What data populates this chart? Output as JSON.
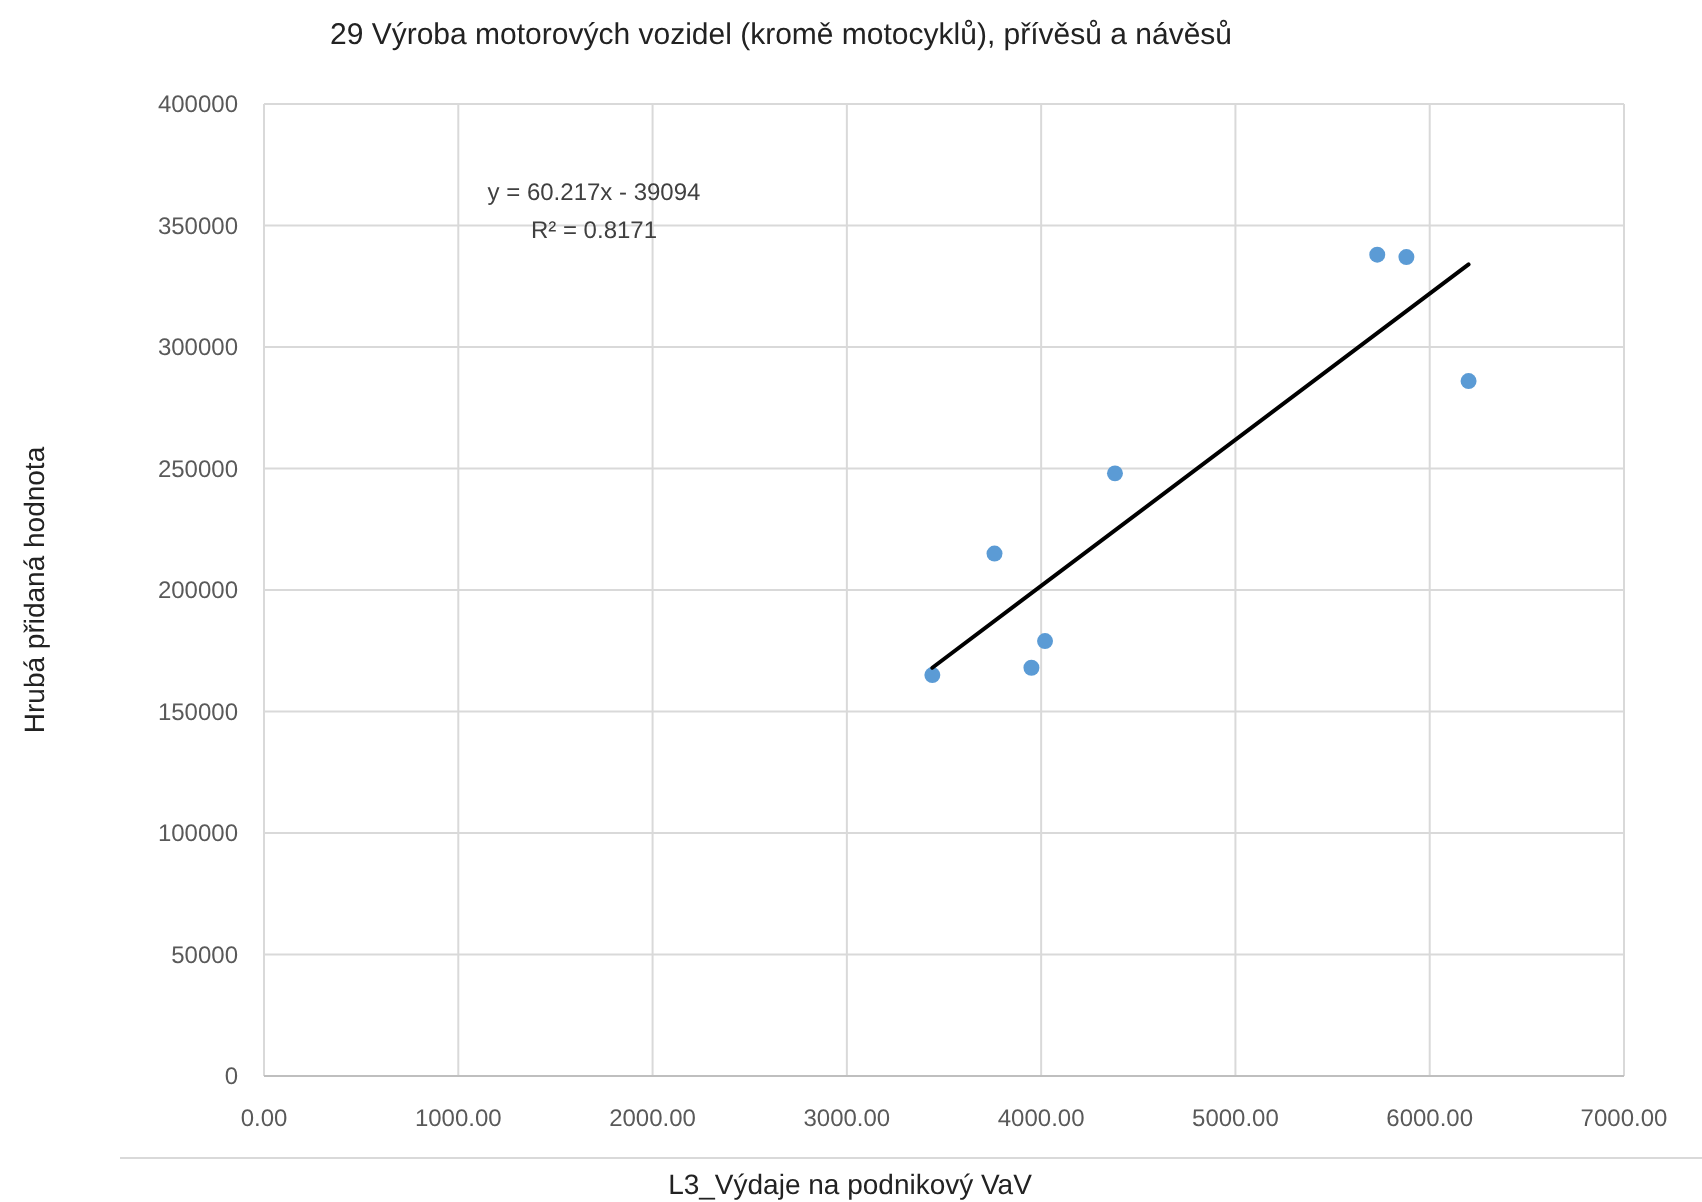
{
  "chart_data": {
    "type": "scatter",
    "title": "29 Výroba motorových vozidel (kromě motocyklů), přívěsů a návěsů",
    "xlabel": "L3_Výdaje na  podnikový VaV",
    "ylabel": "Hrubá přidaná hodnota",
    "series": [
      {
        "color": "#5b9bd5",
        "marker": "circle",
        "x": [
          3440,
          3760,
          3950,
          4020,
          4380,
          5730,
          5880,
          6200
        ],
        "values": [
          165000,
          215000,
          168000,
          179000,
          248000,
          338000,
          337000,
          286000
        ]
      },
      {
        "type": "line",
        "color": "#000000",
        "marker": "none",
        "x": [
          3440,
          6200
        ],
        "values": [
          168000,
          334000
        ]
      }
    ],
    "xlim": [
      0,
      7000
    ],
    "xticks": [
      {
        "value": 0,
        "label": "0.00"
      },
      {
        "value": 1000,
        "label": "1000.00"
      },
      {
        "value": 2000,
        "label": "2000.00"
      },
      {
        "value": 3000,
        "label": "3000.00"
      },
      {
        "value": 4000,
        "label": "4000.00"
      },
      {
        "value": 5000,
        "label": "5000.00"
      },
      {
        "value": 6000,
        "label": "6000.00"
      },
      {
        "value": 7000,
        "label": "7000.00"
      }
    ],
    "ylim": [
      0,
      400000
    ],
    "yticks": [
      0,
      50000,
      100000,
      150000,
      200000,
      250000,
      300000,
      350000,
      400000
    ],
    "grid": true,
    "annotations": [
      "y = 60.217x  - 39094",
      "R² = 0.8171"
    ]
  }
}
